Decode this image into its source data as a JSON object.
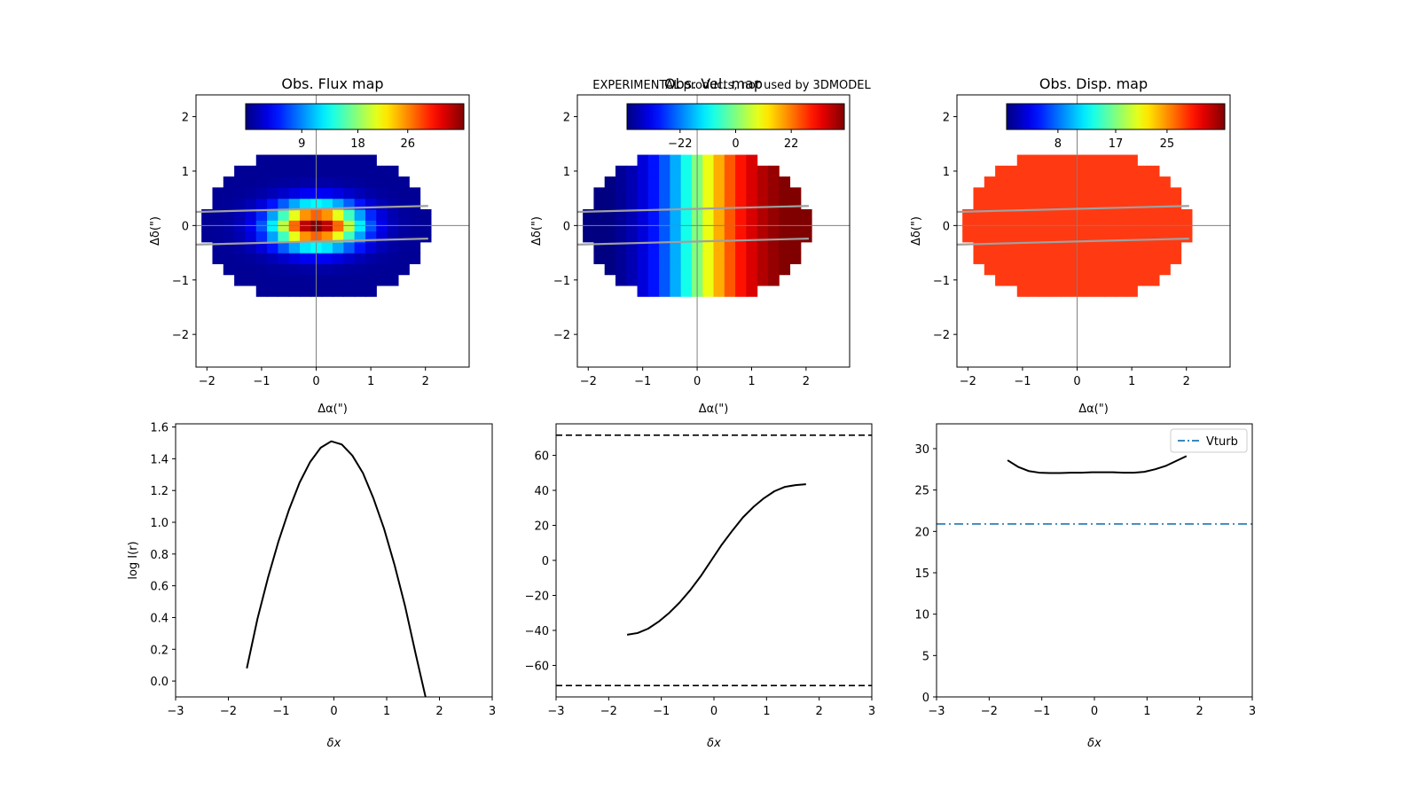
{
  "note": {
    "text": "EXPERIMENTAL products, not used by 3DMODEL",
    "color": "#ff0000"
  },
  "colors": {
    "curve": "#000000",
    "vturb": "#1f77b4",
    "slit": "#a0a0a0",
    "disp_fill": "#ff3a12"
  },
  "chart_data": [
    {
      "type": "heatmap",
      "title": "Obs. Flux map",
      "xlabel": "Δα(\")",
      "ylabel": "Δδ(\")",
      "xlim": [
        -2.2,
        2.8
      ],
      "ylim": [
        -2.6,
        2.4
      ],
      "xticks": [
        -2,
        -1,
        0,
        1,
        2
      ],
      "yticks": [
        -2,
        -1,
        0,
        1,
        2
      ],
      "colorbar": {
        "colormap": "jet",
        "range": [
          0,
          35
        ],
        "ticks": [
          9,
          18,
          26
        ],
        "tick_labels": [
          "9",
          "18",
          "26"
        ]
      },
      "pattern": "centrally-peaked"
    },
    {
      "type": "heatmap",
      "title": "Obs. Vel. map",
      "xlabel": "Δα(\")",
      "ylabel": "Δδ(\")",
      "xlim": [
        -2.2,
        2.8
      ],
      "ylim": [
        -2.6,
        2.4
      ],
      "xticks": [
        -2,
        -1,
        0,
        1,
        2
      ],
      "yticks": [
        -2,
        -1,
        0,
        1,
        2
      ],
      "colorbar": {
        "colormap": "jet",
        "range": [
          -43,
          43
        ],
        "ticks": [
          -22,
          0,
          22
        ],
        "tick_labels": [
          "−22",
          "0",
          "22"
        ]
      },
      "pattern": "gradient-x"
    },
    {
      "type": "heatmap",
      "title": "Obs. Disp. map",
      "xlabel": "Δα(\")",
      "ylabel": "Δδ(\")",
      "xlim": [
        -2.2,
        2.8
      ],
      "ylim": [
        -2.6,
        2.4
      ],
      "xticks": [
        -2,
        -1,
        0,
        1,
        2
      ],
      "yticks": [
        -2,
        -1,
        0,
        1,
        2
      ],
      "colorbar": {
        "colormap": "jet",
        "range": [
          0,
          34
        ],
        "ticks": [
          8,
          17,
          25
        ],
        "tick_labels": [
          "8",
          "17",
          "25"
        ]
      },
      "pattern": "uniform"
    },
    {
      "type": "line",
      "xlabel": "δx",
      "ylabel": "log I(r)",
      "xlim": [
        -3,
        3
      ],
      "ylim": [
        -0.1,
        1.62
      ],
      "xticks": [
        -3,
        -2,
        -1,
        0,
        1,
        2,
        3
      ],
      "yticks": [
        0.0,
        0.2,
        0.4,
        0.6,
        0.8,
        1.0,
        1.2,
        1.4,
        1.6
      ],
      "ytick_labels": [
        "0.0",
        "0.2",
        "0.4",
        "0.6",
        "0.8",
        "1.0",
        "1.2",
        "1.4",
        "1.6"
      ],
      "series": [
        {
          "x": [
            -1.65,
            -1.45,
            -1.25,
            -1.05,
            -0.85,
            -0.65,
            -0.45,
            -0.25,
            -0.05,
            0.15,
            0.35,
            0.55,
            0.75,
            0.95,
            1.15,
            1.35,
            1.55,
            1.75
          ],
          "y": [
            0.08,
            0.39,
            0.65,
            0.88,
            1.08,
            1.25,
            1.38,
            1.47,
            1.51,
            1.49,
            1.42,
            1.31,
            1.15,
            0.96,
            0.73,
            0.47,
            0.17,
            -0.12
          ]
        }
      ]
    },
    {
      "type": "line",
      "xlabel": "δx",
      "ylabel": "",
      "xlim": [
        -3,
        3
      ],
      "ylim": [
        -78,
        78
      ],
      "xticks": [
        -3,
        -2,
        -1,
        0,
        1,
        2,
        3
      ],
      "yticks": [
        -60,
        -40,
        -20,
        0,
        20,
        40,
        60
      ],
      "ytick_labels": [
        "−60",
        "−40",
        "−20",
        "0",
        "20",
        "40",
        "60"
      ],
      "series": [
        {
          "x": [
            -1.65,
            -1.45,
            -1.25,
            -1.05,
            -0.85,
            -0.65,
            -0.45,
            -0.25,
            -0.05,
            0.15,
            0.35,
            0.55,
            0.75,
            0.95,
            1.15,
            1.35,
            1.55,
            1.75
          ],
          "y": [
            -42.5,
            -41.5,
            -39,
            -35,
            -30,
            -24,
            -17,
            -9,
            0,
            9,
            17,
            24.5,
            30.5,
            35.5,
            39.5,
            42,
            43,
            43.5
          ]
        }
      ],
      "hlines": [
        {
          "y": 71.5,
          "style": "dashed"
        },
        {
          "y": -71.5,
          "style": "dashed"
        }
      ]
    },
    {
      "type": "line",
      "xlabel": "δx",
      "ylabel": "",
      "xlim": [
        -3,
        3
      ],
      "ylim": [
        0,
        33
      ],
      "xticks": [
        -3,
        -2,
        -1,
        0,
        1,
        2,
        3
      ],
      "yticks": [
        0,
        5,
        10,
        15,
        20,
        25,
        30
      ],
      "ytick_labels": [
        "0",
        "5",
        "10",
        "15",
        "20",
        "25",
        "30"
      ],
      "series": [
        {
          "x": [
            -1.65,
            -1.45,
            -1.25,
            -1.05,
            -0.85,
            -0.65,
            -0.45,
            -0.25,
            -0.05,
            0.15,
            0.35,
            0.55,
            0.75,
            0.95,
            1.15,
            1.35,
            1.55,
            1.75
          ],
          "y": [
            28.6,
            27.8,
            27.3,
            27.1,
            27.05,
            27.05,
            27.1,
            27.1,
            27.15,
            27.15,
            27.15,
            27.1,
            27.1,
            27.2,
            27.5,
            27.9,
            28.5,
            29.1
          ]
        }
      ],
      "hlines": [
        {
          "y": 20.9,
          "style": "dashdot",
          "name": "Vturb"
        }
      ],
      "legend": {
        "position": "upper right",
        "entries": [
          "Vturb"
        ]
      }
    }
  ]
}
